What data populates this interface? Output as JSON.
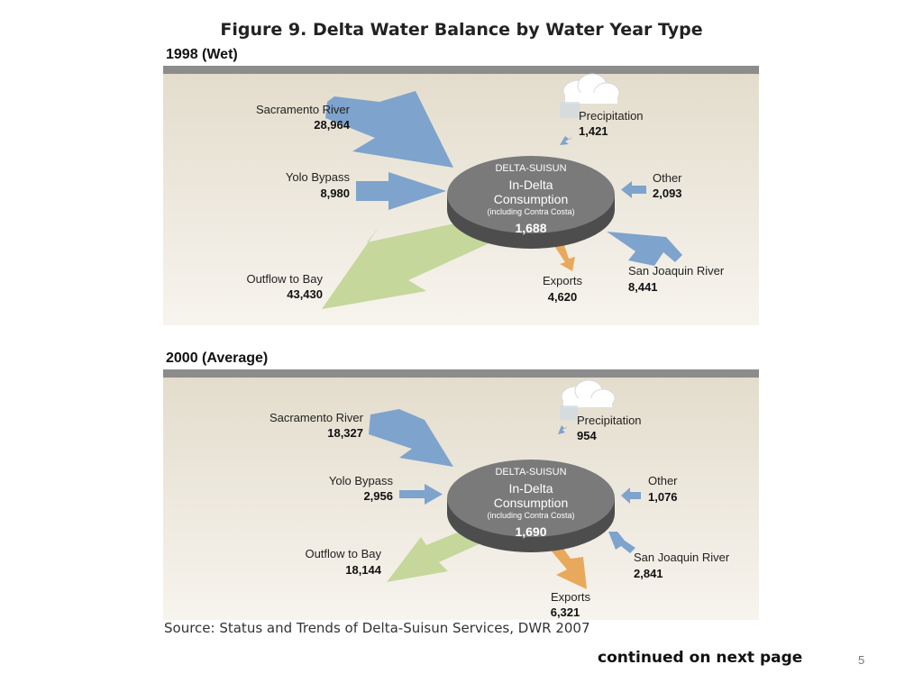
{
  "title": "Figure 9. Delta Water Balance by Water Year Type",
  "colors": {
    "inflow_arrow": "#7ea3cc",
    "outflow_arrow": "#c5d79b",
    "exports_arrow": "#e8a95c",
    "disk": "#7a7a7a",
    "panel_bg": "#ebe4d6",
    "panel_top_bar": "#8c8c8c"
  },
  "panels": [
    {
      "label": "1998 (Wet)",
      "center": {
        "top": "DELTA-SUISUN",
        "line1": "In-Delta",
        "line2": "Consumption",
        "note": "(including Contra Costa)",
        "value": "1,688"
      },
      "flows": {
        "sacramento": {
          "name": "Sacramento River",
          "value": "28,964"
        },
        "yolo": {
          "name": "Yolo Bypass",
          "value": "8,980"
        },
        "outflow": {
          "name": "Outflow to Bay",
          "value": "43,430"
        },
        "precip": {
          "name": "Precipitation",
          "value": "1,421"
        },
        "other": {
          "name": "Other",
          "value": "2,093"
        },
        "sanjoaquin": {
          "name": "San Joaquin River",
          "value": "8,441"
        },
        "exports": {
          "name": "Exports",
          "value": "4,620"
        }
      }
    },
    {
      "label": "2000 (Average)",
      "center": {
        "top": "DELTA-SUISUN",
        "line1": "In-Delta",
        "line2": "Consumption",
        "note": "(including Contra Costa)",
        "value": "1,690"
      },
      "flows": {
        "sacramento": {
          "name": "Sacramento River",
          "value": "18,327"
        },
        "yolo": {
          "name": "Yolo Bypass",
          "value": "2,956"
        },
        "outflow": {
          "name": "Outflow to Bay",
          "value": "18,144"
        },
        "precip": {
          "name": "Precipitation",
          "value": "954"
        },
        "other": {
          "name": "Other",
          "value": "1,076"
        },
        "sanjoaquin": {
          "name": "San Joaquin River",
          "value": "2,841"
        },
        "exports": {
          "name": "Exports",
          "value": "6,321"
        }
      }
    }
  ],
  "source": "Source: Status and Trends of Delta-Suisun Services, DWR 2007",
  "continued": "continued on next page",
  "page_number": "5"
}
